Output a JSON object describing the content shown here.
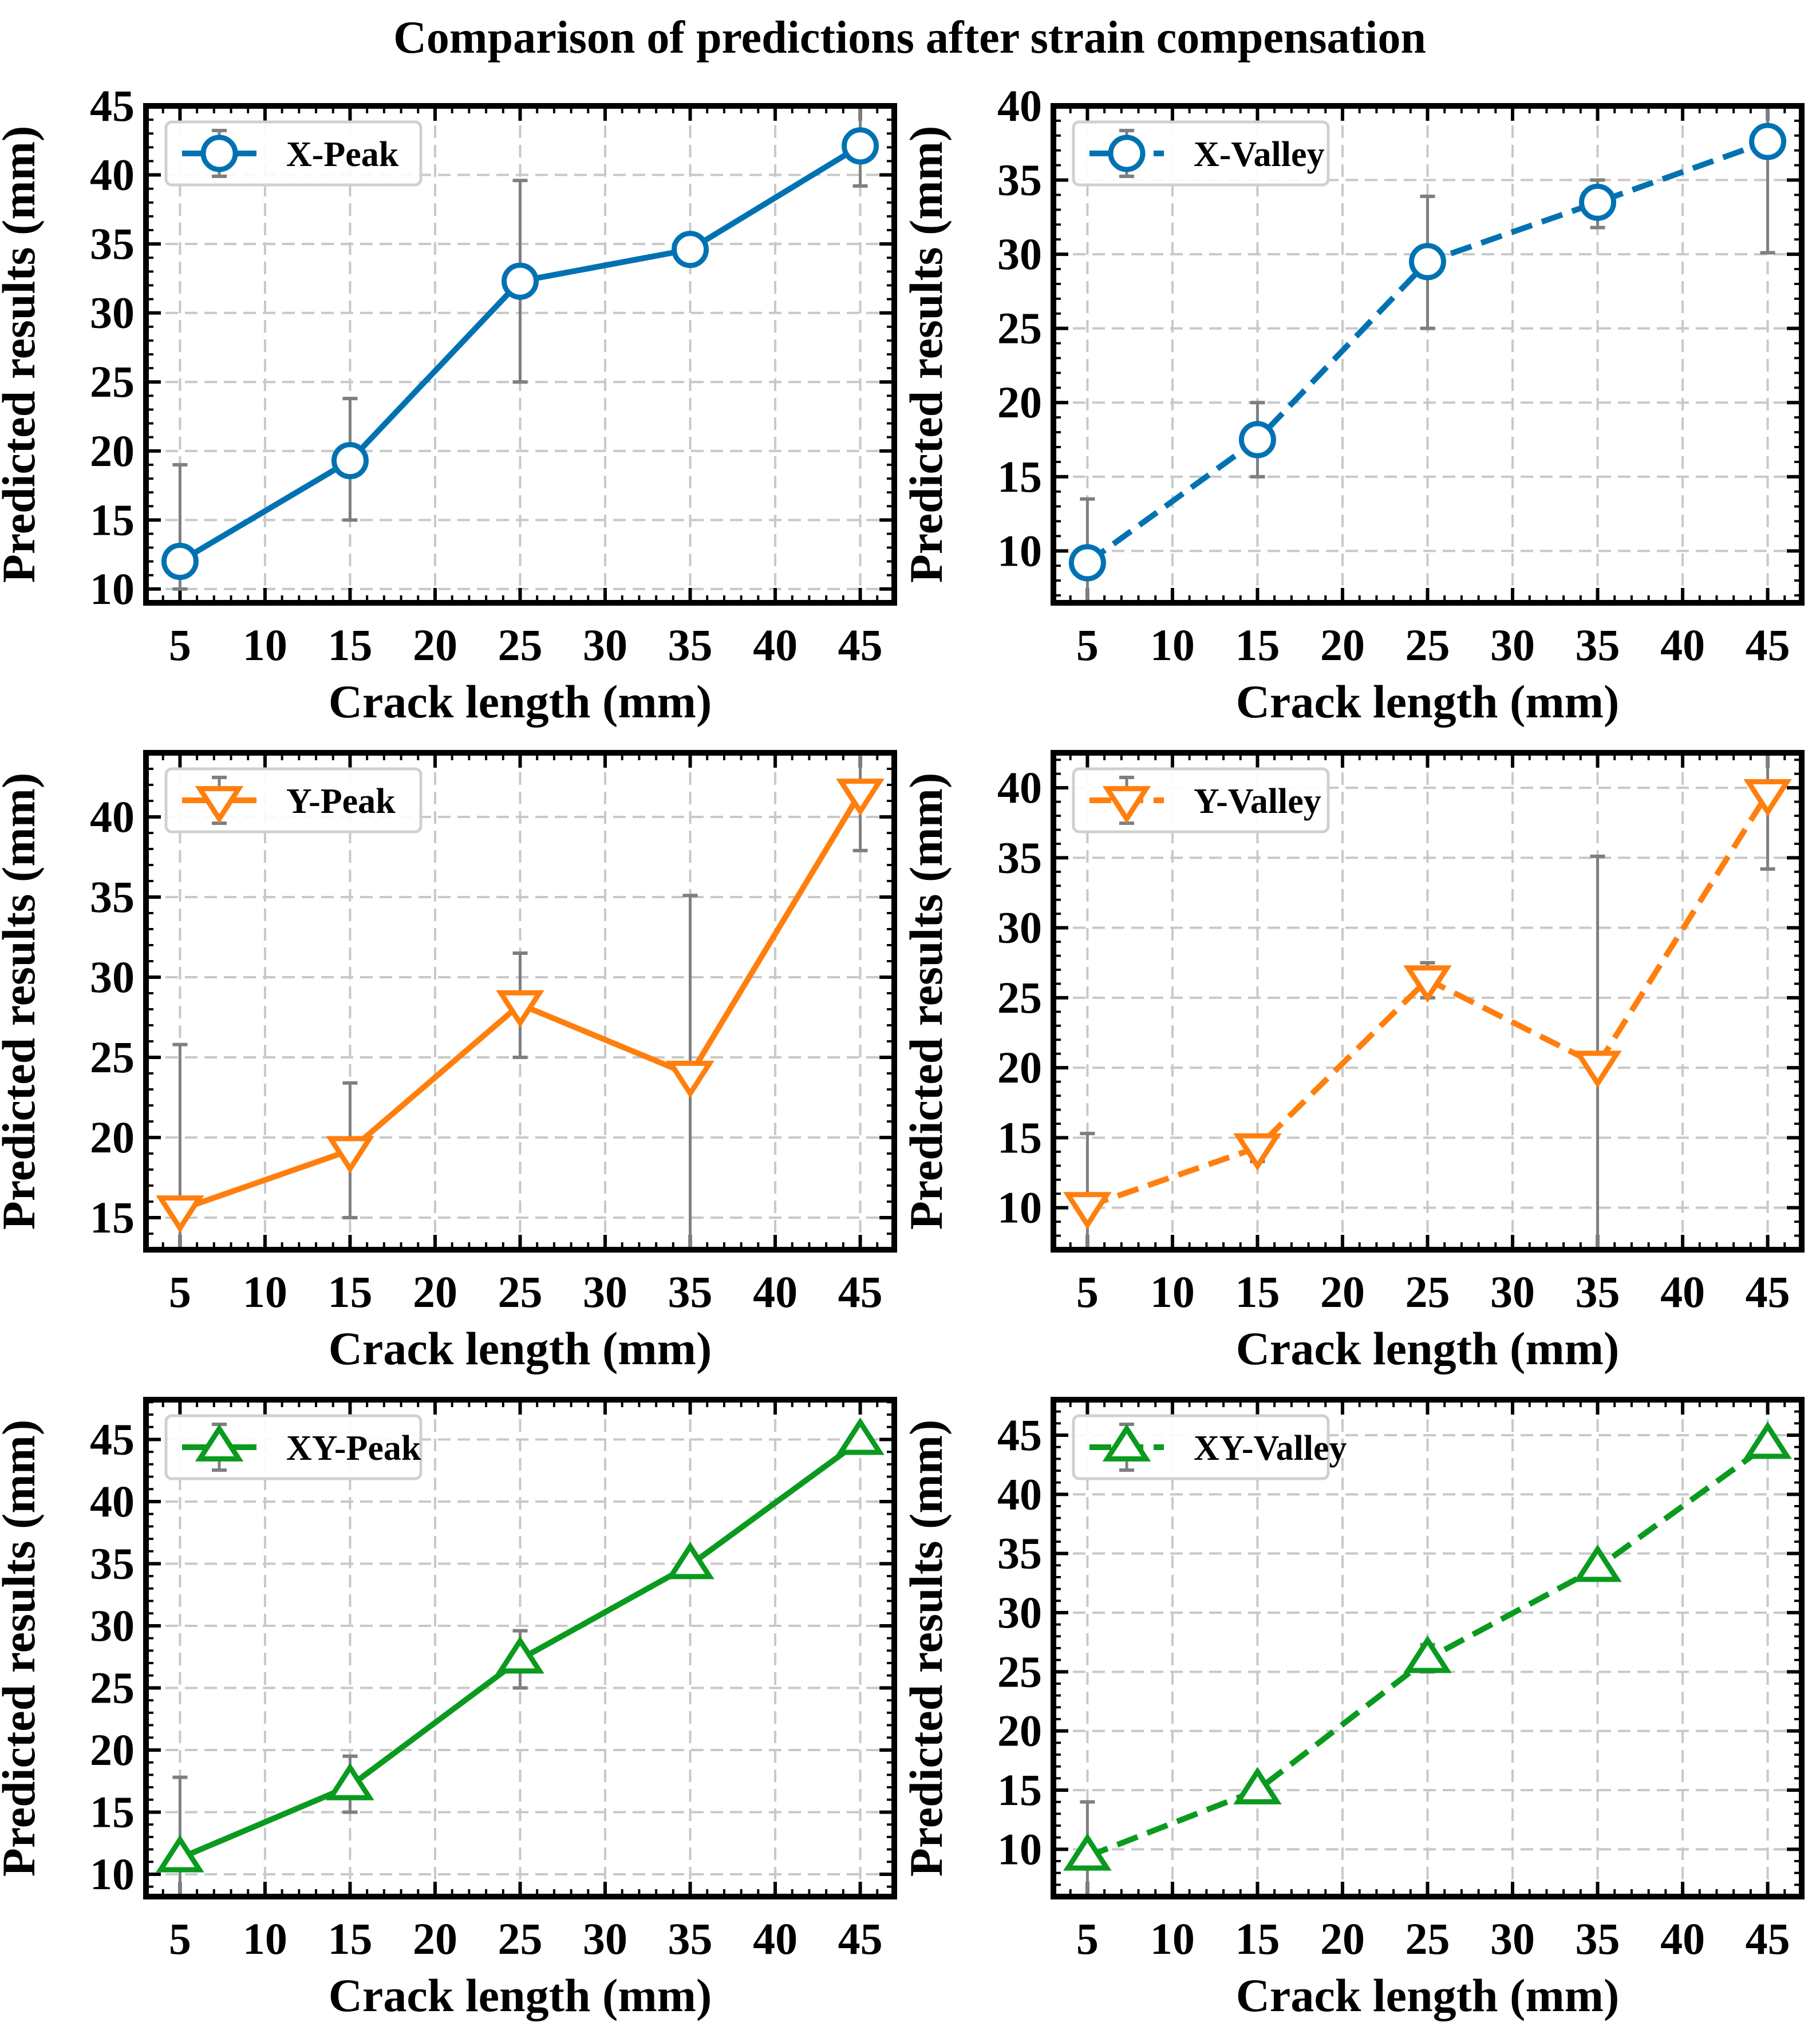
{
  "figure": {
    "title": "Comparison of predictions after strain compensation"
  },
  "chart_data": [
    {
      "type": "line",
      "title": "",
      "xlabel": "Crack length (mm)",
      "ylabel": "Predicted results (mm)",
      "xlim": [
        3,
        47
      ],
      "ylim": [
        9,
        45
      ],
      "xticks": [
        5,
        10,
        15,
        20,
        25,
        30,
        35,
        40,
        45
      ],
      "yticks": [
        10,
        15,
        20,
        25,
        30,
        35,
        40,
        45
      ],
      "grid": true,
      "legend": "top-left",
      "series": [
        {
          "name": "X-Peak",
          "color": "#0072B2",
          "line_style": "solid",
          "marker": "circle",
          "x": [
            5,
            15,
            25,
            35,
            45
          ],
          "y": [
            12.0,
            19.3,
            32.3,
            34.6,
            42.1
          ],
          "err_low": [
            10.0,
            15.0,
            25.0,
            34.6,
            39.2
          ],
          "err_high": [
            19.0,
            23.8,
            39.6,
            34.6,
            45.0
          ]
        }
      ]
    },
    {
      "type": "line",
      "title": "",
      "xlabel": "Crack length (mm)",
      "ylabel": "Predicted results (mm)",
      "xlim": [
        3,
        47
      ],
      "ylim": [
        6.5,
        40
      ],
      "xticks": [
        5,
        10,
        15,
        20,
        25,
        30,
        35,
        40,
        45
      ],
      "yticks": [
        10,
        15,
        20,
        25,
        30,
        35,
        40
      ],
      "grid": true,
      "legend": "top-left",
      "series": [
        {
          "name": "X-Valley",
          "color": "#0072B2",
          "line_style": "dashed",
          "marker": "circle",
          "x": [
            5,
            15,
            25,
            35,
            45
          ],
          "y": [
            9.2,
            17.5,
            29.5,
            33.5,
            37.6
          ],
          "err_low": [
            6.5,
            15.0,
            25.0,
            31.8,
            30.1
          ],
          "err_high": [
            13.5,
            20.0,
            33.9,
            35.0,
            40.0
          ]
        }
      ]
    },
    {
      "type": "line",
      "title": "",
      "xlabel": "Crack length (mm)",
      "ylabel": "Predicted results (mm)",
      "xlim": [
        3,
        47
      ],
      "ylim": [
        13,
        44
      ],
      "xticks": [
        5,
        10,
        15,
        20,
        25,
        30,
        35,
        40,
        45
      ],
      "yticks": [
        15,
        20,
        25,
        30,
        35,
        40
      ],
      "grid": true,
      "legend": "top-left",
      "series": [
        {
          "name": "Y-Peak",
          "color": "#FF7F0E",
          "line_style": "solid",
          "marker": "triangle-down",
          "x": [
            5,
            15,
            25,
            35,
            45
          ],
          "y": [
            15.5,
            19.2,
            28.3,
            23.9,
            41.5
          ],
          "err_low": [
            13.0,
            15.0,
            25.0,
            13.0,
            37.9
          ],
          "err_high": [
            25.8,
            23.4,
            31.5,
            35.1,
            44.0
          ]
        }
      ]
    },
    {
      "type": "line",
      "title": "",
      "xlabel": "Crack length (mm)",
      "ylabel": "Predicted results (mm)",
      "xlim": [
        3,
        47
      ],
      "ylim": [
        7,
        42.5
      ],
      "xticks": [
        5,
        10,
        15,
        20,
        25,
        30,
        35,
        40,
        45
      ],
      "yticks": [
        10,
        15,
        20,
        25,
        30,
        35,
        40
      ],
      "grid": true,
      "legend": "top-left",
      "series": [
        {
          "name": "Y-Valley",
          "color": "#FF7F0E",
          "line_style": "dashed",
          "marker": "triangle-down",
          "x": [
            5,
            15,
            25,
            35,
            45
          ],
          "y": [
            10.1,
            14.3,
            26.3,
            20.2,
            39.6
          ],
          "err_low": [
            7.0,
            13.3,
            25.0,
            7.0,
            34.2
          ],
          "err_high": [
            15.3,
            15.0,
            27.5,
            35.1,
            42.5
          ]
        }
      ]
    },
    {
      "type": "line",
      "title": "",
      "xlabel": "Crack length (mm)",
      "ylabel": "Predicted results (mm)",
      "xlim": [
        3,
        47
      ],
      "ylim": [
        8.2,
        48.2
      ],
      "xticks": [
        5,
        10,
        15,
        20,
        25,
        30,
        35,
        40,
        45
      ],
      "yticks": [
        10,
        15,
        20,
        25,
        30,
        35,
        40,
        45
      ],
      "grid": true,
      "legend": "top-left",
      "series": [
        {
          "name": "XY-Peak",
          "color": "#0A9A1E",
          "line_style": "solid",
          "marker": "triangle-up",
          "x": [
            5,
            15,
            25,
            35,
            45
          ],
          "y": [
            11.3,
            17.1,
            27.3,
            34.9,
            44.9
          ],
          "err_low": [
            8.2,
            15.0,
            25.0,
            34.9,
            44.9
          ],
          "err_high": [
            17.8,
            19.5,
            29.6,
            34.9,
            44.9
          ]
        }
      ]
    },
    {
      "type": "line",
      "title": "",
      "xlabel": "Crack length (mm)",
      "ylabel": "Predicted results (mm)",
      "xlim": [
        3,
        47
      ],
      "ylim": [
        6,
        48
      ],
      "xticks": [
        5,
        10,
        15,
        20,
        25,
        30,
        35,
        40,
        45
      ],
      "yticks": [
        10,
        15,
        20,
        25,
        30,
        35,
        40,
        45
      ],
      "grid": true,
      "legend": "top-left",
      "series": [
        {
          "name": "XY-Valley",
          "color": "#0A9A1E",
          "line_style": "dashed",
          "marker": "triangle-up",
          "x": [
            5,
            15,
            25,
            35,
            45
          ],
          "y": [
            9.4,
            15.0,
            26.1,
            33.8,
            44.2
          ],
          "err_low": [
            6.0,
            15.0,
            25.0,
            33.8,
            44.2
          ],
          "err_high": [
            14.0,
            15.0,
            27.3,
            33.8,
            44.2
          ]
        }
      ]
    }
  ]
}
